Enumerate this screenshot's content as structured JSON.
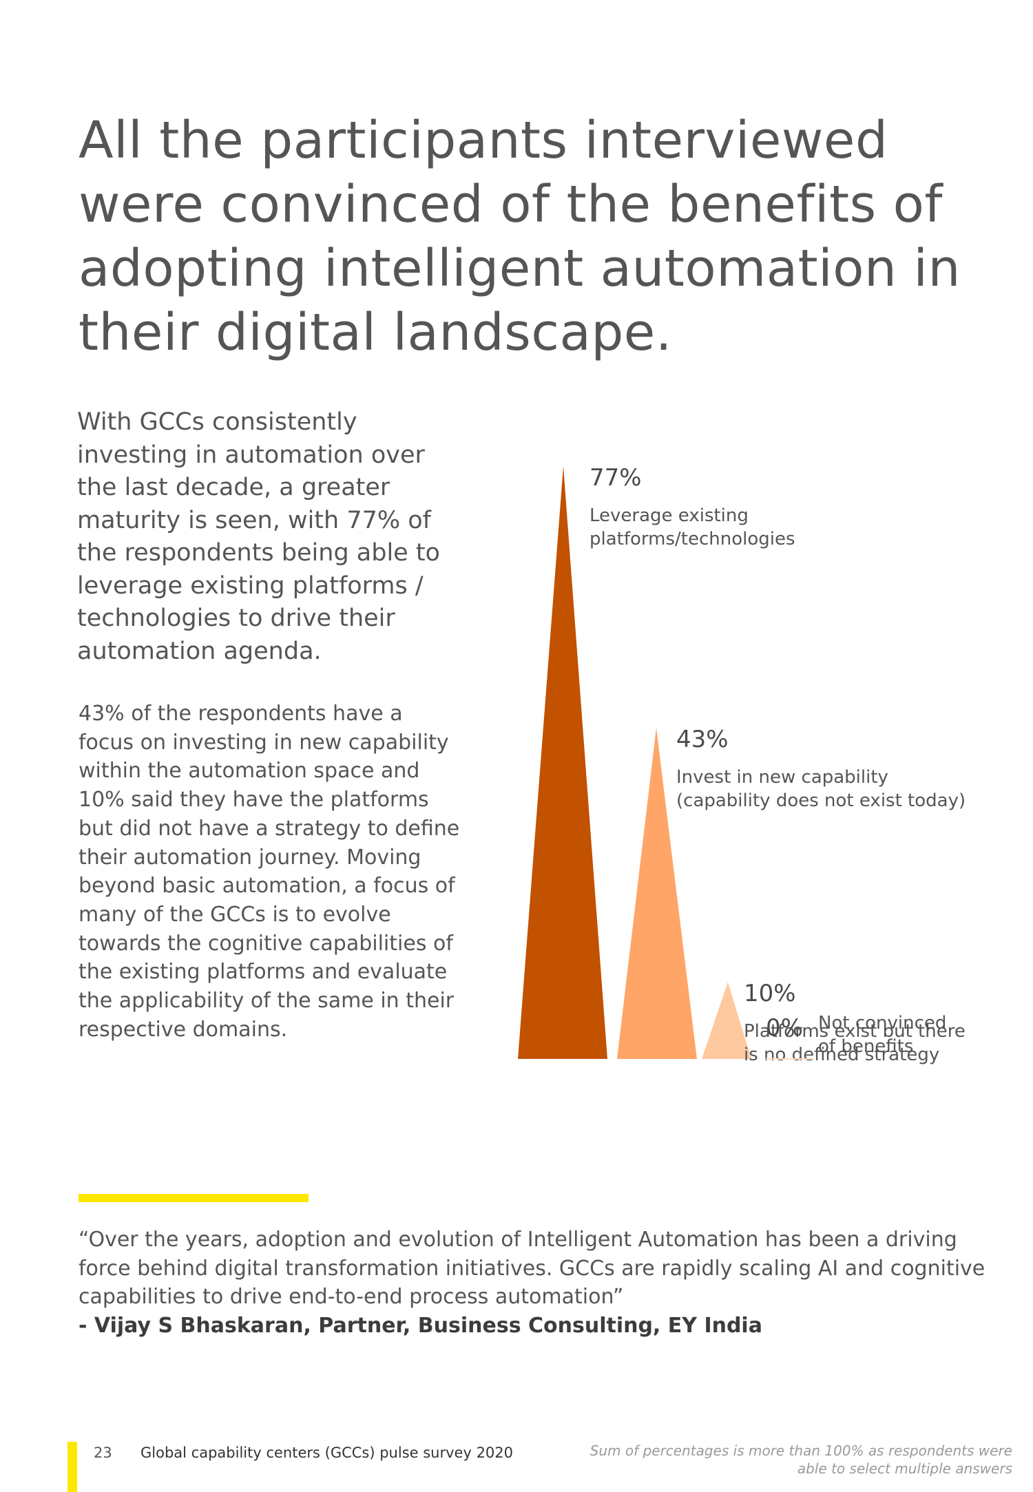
{
  "headline": "All the participants interviewed were convinced of the benefits of adopting intelligent automation in their digital landscape.",
  "intro": "With GCCs consistently investing in automation over the last decade, a greater maturity is seen, with 77% of the respondents being able to leverage existing platforms / technologies to drive their automation agenda.",
  "body2": "43% of the respondents have a focus on investing in new capability within the automation space and 10% said they have the platforms but did not have a strategy to define their automation journey. Moving beyond basic automation, a focus of many of the GCCs is to evolve towards the cognitive capabilities of the existing platforms and evaluate the applicability of the same in their respective domains.",
  "chart_data": {
    "type": "bar",
    "title": "",
    "xlabel": "",
    "ylabel": "",
    "ylim": [
      0,
      100
    ],
    "categories": [
      "Leverage existing platforms/technologies",
      "Invest in new capability (capability does not exist today)",
      "Platforms exist but there is no defined strategy",
      "Not convinced of benefits"
    ],
    "values": [
      77,
      43,
      10,
      0
    ],
    "value_labels": [
      "77%",
      "43%",
      "10%",
      "0%"
    ],
    "label_lines": [
      [
        "Leverage existing",
        "platforms/technologies"
      ],
      [
        "Invest in new capability",
        "(capability does not exist today)"
      ],
      [
        "Platforms exist but there",
        "is no defined strategy"
      ],
      [
        "Not convinced",
        "of benefits"
      ]
    ],
    "colors": [
      "#c25100",
      "#ffa567",
      "#ffc9a0",
      "#ffd9bf"
    ]
  },
  "quote": {
    "text": "“Over the years, adoption and evolution of Intelligent Automation has been a driving force behind digital transformation initiatives. GCCs are rapidly scaling AI and cognitive capabilities to drive end-to-end process automation”",
    "attribution": "- Vijay S Bhaskaran, Partner, Business Consulting, EY India"
  },
  "footer": {
    "page_number": "23",
    "title": "Global capability centers (GCCs) pulse survey 2020",
    "note": "Sum of percentages is more than 100% as respondents were able to select multiple answers"
  },
  "colors": {
    "accent_yellow": "#ffe600"
  }
}
